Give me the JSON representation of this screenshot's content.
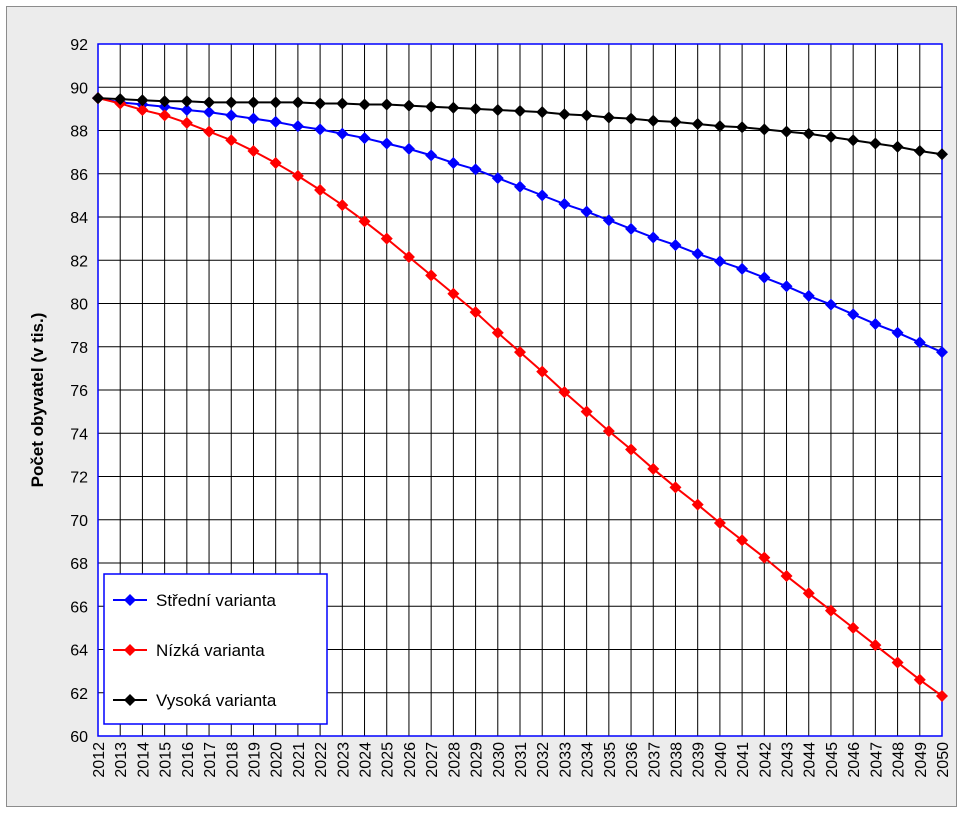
{
  "chart_data": {
    "type": "line",
    "title": "",
    "xlabel": "",
    "ylabel": "Počet obyvatel (v tis.)",
    "x": [
      2012,
      2013,
      2014,
      2015,
      2016,
      2017,
      2018,
      2019,
      2020,
      2021,
      2022,
      2023,
      2024,
      2025,
      2026,
      2027,
      2028,
      2029,
      2030,
      2031,
      2032,
      2033,
      2034,
      2035,
      2036,
      2037,
      2038,
      2039,
      2040,
      2041,
      2042,
      2043,
      2044,
      2045,
      2046,
      2047,
      2048,
      2049,
      2050
    ],
    "ylim": [
      60,
      92
    ],
    "yticks": [
      60,
      62,
      64,
      66,
      68,
      70,
      72,
      74,
      76,
      78,
      80,
      82,
      84,
      86,
      88,
      90,
      92
    ],
    "grid": true,
    "legend_position": "bottom-left",
    "series": [
      {
        "name": "Střední varianta",
        "color": "#0000ff",
        "values": [
          89.5,
          89.3,
          89.2,
          89.1,
          88.95,
          88.85,
          88.7,
          88.55,
          88.4,
          88.2,
          88.05,
          87.85,
          87.65,
          87.4,
          87.15,
          86.85,
          86.5,
          86.2,
          85.8,
          85.4,
          85.0,
          84.6,
          84.25,
          83.85,
          83.45,
          83.05,
          82.7,
          82.3,
          81.95,
          81.6,
          81.2,
          80.8,
          80.35,
          79.95,
          79.5,
          79.05,
          78.65,
          78.2,
          77.75
        ]
      },
      {
        "name": "Nízká varianta",
        "color": "#ff0000",
        "values": [
          89.5,
          89.25,
          88.95,
          88.7,
          88.35,
          87.95,
          87.55,
          87.05,
          86.5,
          85.9,
          85.25,
          84.55,
          83.8,
          83.0,
          82.15,
          81.3,
          80.45,
          79.6,
          78.65,
          77.75,
          76.85,
          75.9,
          75.0,
          74.1,
          73.25,
          72.35,
          71.5,
          70.7,
          69.85,
          69.05,
          68.25,
          67.4,
          66.6,
          65.8,
          65.0,
          64.2,
          63.4,
          62.6,
          61.85
        ]
      },
      {
        "name": "Vysoká varianta",
        "color": "#000000",
        "values": [
          89.5,
          89.45,
          89.4,
          89.35,
          89.35,
          89.3,
          89.3,
          89.3,
          89.3,
          89.3,
          89.25,
          89.25,
          89.2,
          89.2,
          89.15,
          89.1,
          89.05,
          89.0,
          88.95,
          88.9,
          88.85,
          88.75,
          88.7,
          88.6,
          88.55,
          88.45,
          88.4,
          88.3,
          88.2,
          88.15,
          88.05,
          87.95,
          87.85,
          87.7,
          87.55,
          87.4,
          87.25,
          87.05,
          86.9
        ]
      }
    ]
  }
}
